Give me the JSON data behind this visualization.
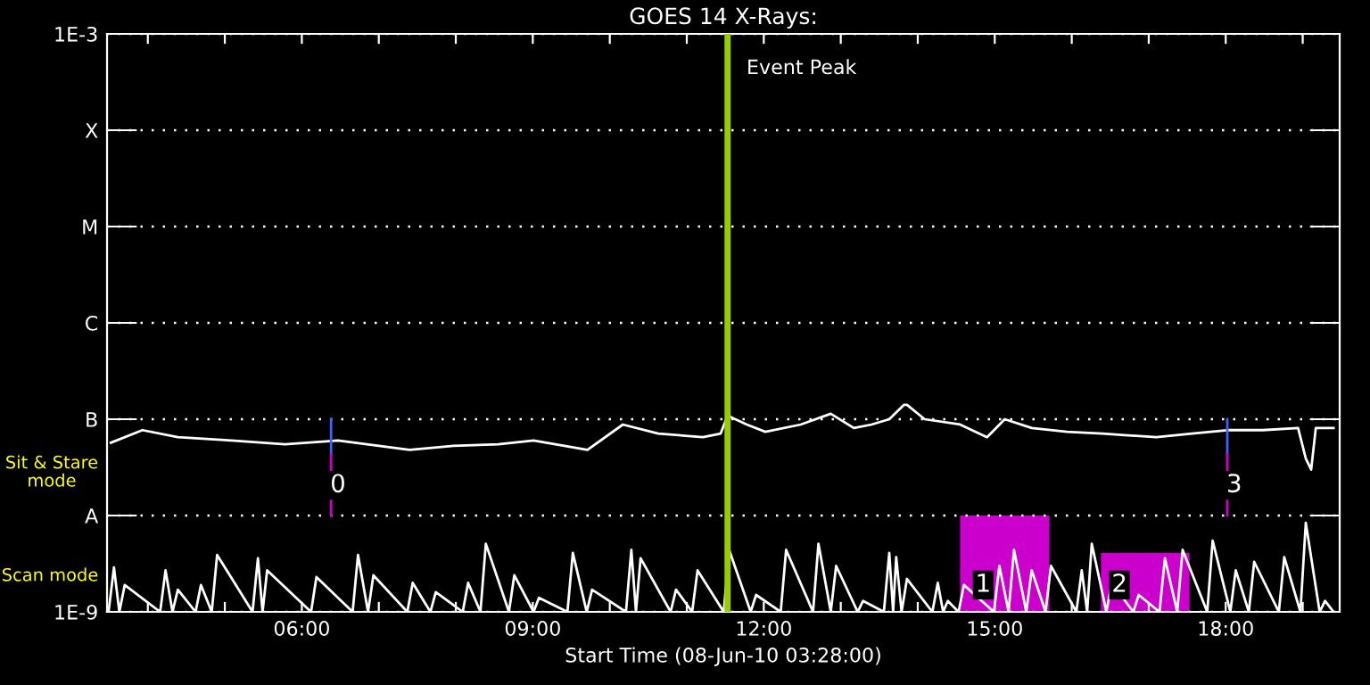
{
  "chart_data": {
    "type": "line",
    "title": "GOES 14 X-Rays:",
    "xlabel": "Start Time (08-Jun-10 03:28:00)",
    "log": "y",
    "grid": "y",
    "legend": false,
    "line_style": "solid",
    "marker": "none",
    "xlim": [
      3.47,
      19.48
    ],
    "ylim": [
      1e-09,
      0.001
    ],
    "xticks": [
      {
        "value": 4,
        "label": null
      },
      {
        "value": 5,
        "label": null
      },
      {
        "value": 6,
        "label": "06:00"
      },
      {
        "value": 7,
        "label": null
      },
      {
        "value": 8,
        "label": null
      },
      {
        "value": 9,
        "label": "09:00"
      },
      {
        "value": 10,
        "label": null
      },
      {
        "value": 11,
        "label": null
      },
      {
        "value": 12,
        "label": "12:00"
      },
      {
        "value": 13,
        "label": null
      },
      {
        "value": 14,
        "label": null
      },
      {
        "value": 15,
        "label": "15:00"
      },
      {
        "value": 16,
        "label": null
      },
      {
        "value": 17,
        "label": null
      },
      {
        "value": 18,
        "label": "18:00"
      },
      {
        "value": 19,
        "label": null
      }
    ],
    "yticks": [
      {
        "value": 1e-09,
        "label": "1E-9"
      },
      {
        "value": 1e-08,
        "label": "A"
      },
      {
        "value": 1e-07,
        "label": "B"
      },
      {
        "value": 1e-06,
        "label": "C"
      },
      {
        "value": 1e-05,
        "label": "M"
      },
      {
        "value": 0.0001,
        "label": "X"
      },
      {
        "value": 0.001,
        "label": "1E-3"
      }
    ],
    "series": [
      {
        "type": "area",
        "color": "#cc00cc",
        "x": [
          14.55,
          14.55,
          15.71,
          15.71
        ],
        "values": [
          1e-09,
          1e-08,
          1e-08,
          1e-09
        ]
      },
      {
        "type": "area",
        "color": "#cc00cc",
        "x": [
          16.38,
          16.38,
          17.53,
          17.53
        ],
        "values": [
          1e-09,
          4.1e-09,
          4.1e-09,
          1e-09
        ]
      },
      {
        "color": "#ffffff",
        "x": [
          3.52,
          3.93,
          4.39,
          5.09,
          5.78,
          6.47,
          7.4,
          7.97,
          8.55,
          9.01,
          9.71,
          10.17,
          10.63,
          11.21,
          11.44,
          11.53,
          11.78,
          12.02,
          12.48,
          12.87,
          13.17,
          13.4,
          13.63,
          13.82,
          13.86,
          14.09,
          14.55,
          14.9,
          15.13,
          15.48,
          15.94,
          16.4,
          17.1,
          17.56,
          18.02,
          18.48,
          18.94,
          19.04,
          19.11,
          19.17,
          19.4
        ],
        "values": [
          5.7e-08,
          7.7e-08,
          6.5e-08,
          6e-08,
          5.5e-08,
          6e-08,
          4.8e-08,
          5.3e-08,
          5.5e-08,
          6e-08,
          4.8e-08,
          8.8e-08,
          7.1e-08,
          6.5e-08,
          7.1e-08,
          1.09e-07,
          8.8e-08,
          7.4e-08,
          8.8e-08,
          1.14e-07,
          8.1e-08,
          8.8e-08,
          1e-07,
          1.41e-07,
          1.41e-07,
          1e-07,
          8.8e-08,
          6.5e-08,
          1e-07,
          8.1e-08,
          7.4e-08,
          7.1e-08,
          6.5e-08,
          7.1e-08,
          7.7e-08,
          7.7e-08,
          8.1e-08,
          3.9e-08,
          3e-08,
          8.1e-08,
          8.1e-08
        ]
      },
      {
        "color": "#ffffff",
        "x": [
          3.49,
          3.56,
          3.63,
          3.7,
          4.16,
          4.23,
          4.32,
          4.39,
          4.62,
          4.69,
          4.83,
          4.9,
          5.36,
          5.43,
          5.49,
          5.55,
          6.12,
          6.19,
          6.66,
          6.73,
          6.86,
          6.93,
          7.37,
          7.44,
          7.67,
          7.74,
          8.09,
          8.16,
          8.32,
          8.39,
          8.69,
          8.76,
          9.01,
          9.08,
          9.45,
          9.52,
          9.7,
          9.77,
          10.21,
          10.28,
          10.34,
          10.4,
          10.79,
          10.86,
          11.07,
          11.14,
          11.48,
          11.55,
          11.83,
          11.9,
          12.22,
          12.29,
          12.64,
          12.71,
          12.87,
          12.94,
          13.22,
          13.29,
          13.56,
          13.63,
          13.68,
          13.72,
          13.79,
          13.86,
          14.19,
          14.26,
          14.33,
          14.39,
          14.53,
          14.6,
          14.99,
          15.06,
          15.18,
          15.25,
          15.41,
          15.48,
          15.66,
          15.73,
          16.06,
          16.13,
          16.2,
          16.26,
          16.45,
          16.52,
          16.8,
          16.87,
          17.14,
          17.21,
          17.37,
          17.44,
          17.76,
          17.83,
          18.06,
          18.13,
          18.3,
          18.37,
          18.69,
          18.76,
          18.97,
          19.04,
          19.22,
          19.29,
          19.4
        ],
        "values": [
          1e-09,
          2.9e-09,
          1e-09,
          1.9e-09,
          1e-09,
          2.7e-09,
          1e-09,
          1.7e-09,
          1e-09,
          1.9e-09,
          1e-09,
          3.9e-09,
          1e-09,
          3.6e-09,
          1e-09,
          2.7e-09,
          1e-09,
          2.3e-09,
          1e-09,
          3.9e-09,
          1e-09,
          2.4e-09,
          1e-09,
          2e-09,
          1e-09,
          1.6e-09,
          1e-09,
          2e-09,
          1e-09,
          5.1e-09,
          1e-09,
          2.4e-09,
          1e-09,
          1.4e-09,
          1e-09,
          4.1e-09,
          1e-09,
          1.7e-09,
          1e-09,
          4.4e-09,
          1e-09,
          3.6e-09,
          1e-09,
          1.7e-09,
          1e-09,
          2.7e-09,
          1e-09,
          4.4e-09,
          1e-09,
          1.5e-09,
          1e-09,
          4.4e-09,
          1e-09,
          5.1e-09,
          1e-09,
          3e-09,
          1e-09,
          1.3e-09,
          1e-09,
          4.1e-09,
          1e-09,
          3.7e-09,
          1e-09,
          2.2e-09,
          1e-09,
          2e-09,
          1e-09,
          1.3e-09,
          1e-09,
          1.9e-09,
          1e-09,
          3e-09,
          1e-09,
          4.4e-09,
          1e-09,
          2.7e-09,
          1e-09,
          3e-09,
          1e-09,
          2.7e-09,
          1e-09,
          5.1e-09,
          1e-09,
          2e-09,
          1e-09,
          1.5e-09,
          1e-09,
          3.6e-09,
          1e-09,
          4.4e-09,
          1e-09,
          5.5e-09,
          1e-09,
          2.7e-09,
          1e-09,
          3.3e-09,
          1e-09,
          3.7e-09,
          1e-09,
          8.4e-09,
          1e-09,
          1.3e-09,
          1e-09
        ]
      },
      {
        "color": "#4060ff",
        "x": [
          6.38,
          6.38
        ],
        "values": [
          1e-07,
          4.3e-08
        ]
      },
      {
        "color": "#cc00cc",
        "x": [
          6.38,
          6.38
        ],
        "values": [
          4.3e-08,
          1e-08
        ]
      },
      {
        "color": "#4060ff",
        "x": [
          18.02,
          18.02
        ],
        "values": [
          1e-07,
          4.3e-08
        ]
      },
      {
        "color": "#cc00cc",
        "x": [
          18.02,
          18.02
        ],
        "values": [
          4.3e-08,
          1e-08
        ]
      }
    ],
    "ref_lines": [
      {
        "axis": "x",
        "value": 11.53,
        "label": "Event Peak",
        "color": "#99cc00",
        "line_style": "solid"
      }
    ],
    "annotations": [
      "Sit & Stare\nmode",
      "Scan mode",
      {
        "text": "0",
        "x": 6.47,
        "y": 2.06e-08
      },
      {
        "text": "3",
        "x": 18.11,
        "y": 2.06e-08
      },
      {
        "text": "1",
        "x": 14.85,
        "y": 1.9e-09
      },
      {
        "text": "2",
        "x": 16.62,
        "y": 1.9e-09
      }
    ]
  }
}
